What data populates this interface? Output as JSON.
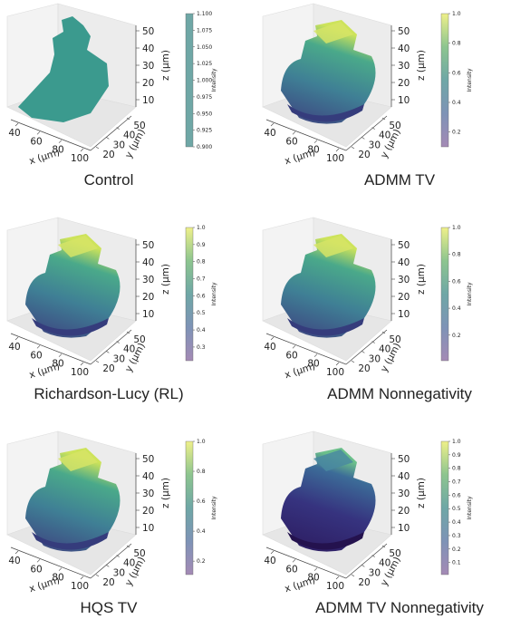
{
  "panels": [
    {
      "caption": "Control",
      "x_label": "x (μm)",
      "y_label": "y (μm)",
      "z_label": "z (μm)",
      "x_ticks": [
        40,
        60,
        80,
        100
      ],
      "y_ticks": [
        20,
        30,
        40,
        50
      ],
      "z_ticks": [
        10,
        20,
        30,
        40,
        50
      ],
      "colorbar": {
        "label": "Intensity",
        "lim": [
          0.9,
          1.1
        ],
        "ticks": [
          {
            "value": 0.9,
            "label": "0.900"
          },
          {
            "value": 0.925,
            "label": "0.925"
          },
          {
            "value": 0.95,
            "label": "0.950"
          },
          {
            "value": 0.975,
            "label": "0.975"
          },
          {
            "value": 1.0,
            "label": "1.000"
          },
          {
            "value": 1.025,
            "label": "1.025"
          },
          {
            "value": 1.05,
            "label": "1.050"
          },
          {
            "value": 1.075,
            "label": "1.075"
          },
          {
            "value": 1.1,
            "label": "1.100"
          }
        ]
      }
    },
    {
      "caption": "ADMM TV",
      "x_label": "x (μm)",
      "y_label": "y (μm)",
      "z_label": "z (μm)",
      "x_ticks": [
        40,
        60,
        80,
        100
      ],
      "y_ticks": [
        20,
        30,
        40,
        50
      ],
      "z_ticks": [
        10,
        20,
        30,
        40,
        50
      ],
      "colorbar": {
        "label": "Intensity",
        "lim": [
          0.1,
          1.0
        ],
        "ticks": [
          0.2,
          0.4,
          0.6,
          0.8,
          {
            "value": 1.0,
            "label": "1.0"
          }
        ]
      }
    },
    {
      "caption": "Richardson-Lucy (RL)",
      "x_label": "x (μm)",
      "y_label": "y (μm)",
      "z_label": "z (μm)",
      "x_ticks": [
        40,
        60,
        80,
        100
      ],
      "y_ticks": [
        20,
        30,
        40,
        50
      ],
      "z_ticks": [
        10,
        20,
        30,
        40,
        50
      ],
      "colorbar": {
        "label": "Intensity",
        "lim": [
          0.22,
          1.0
        ],
        "ticks": [
          0.3,
          0.4,
          0.5,
          0.6,
          0.7,
          0.8,
          0.9,
          {
            "value": 1.0,
            "label": "1.0"
          }
        ]
      }
    },
    {
      "caption": "ADMM Nonnegativity",
      "x_label": "x (μm)",
      "y_label": "y (μm)",
      "z_label": "z (μm)",
      "x_ticks": [
        40,
        60,
        80,
        100
      ],
      "y_ticks": [
        20,
        30,
        40,
        50
      ],
      "z_ticks": [
        10,
        20,
        30,
        40,
        50
      ],
      "colorbar": {
        "label": "Intensity",
        "lim": [
          0.01,
          1.0
        ],
        "ticks": [
          0.2,
          0.4,
          0.6,
          0.8,
          {
            "value": 1.0,
            "label": "1.0"
          }
        ]
      }
    },
    {
      "caption": "HQS TV",
      "x_label": "x (μm)",
      "y_label": "y (μm)",
      "z_label": "z (μm)",
      "x_ticks": [
        40,
        60,
        80,
        100
      ],
      "y_ticks": [
        20,
        30,
        40,
        50
      ],
      "z_ticks": [
        10,
        20,
        30,
        40,
        50
      ],
      "colorbar": {
        "label": "Intensity",
        "lim": [
          0.11,
          1.0
        ],
        "ticks": [
          0.2,
          0.4,
          0.6,
          0.8,
          {
            "value": 1.0,
            "label": "1.0"
          }
        ]
      }
    },
    {
      "caption": "ADMM TV Nonnegativity",
      "x_label": "x (μm)",
      "y_label": "y (μm)",
      "z_label": "z (μm)",
      "x_ticks": [
        40,
        60,
        80,
        100
      ],
      "y_ticks": [
        20,
        30,
        40,
        50
      ],
      "z_ticks": [
        10,
        20,
        30,
        40,
        50
      ],
      "colorbar": {
        "label": "Intensity",
        "lim": [
          0.01,
          1.0
        ],
        "ticks": [
          0.1,
          0.2,
          0.3,
          0.4,
          0.5,
          0.6,
          0.7,
          0.8,
          0.9,
          {
            "value": 1.0,
            "label": "1.0"
          }
        ]
      }
    }
  ]
}
